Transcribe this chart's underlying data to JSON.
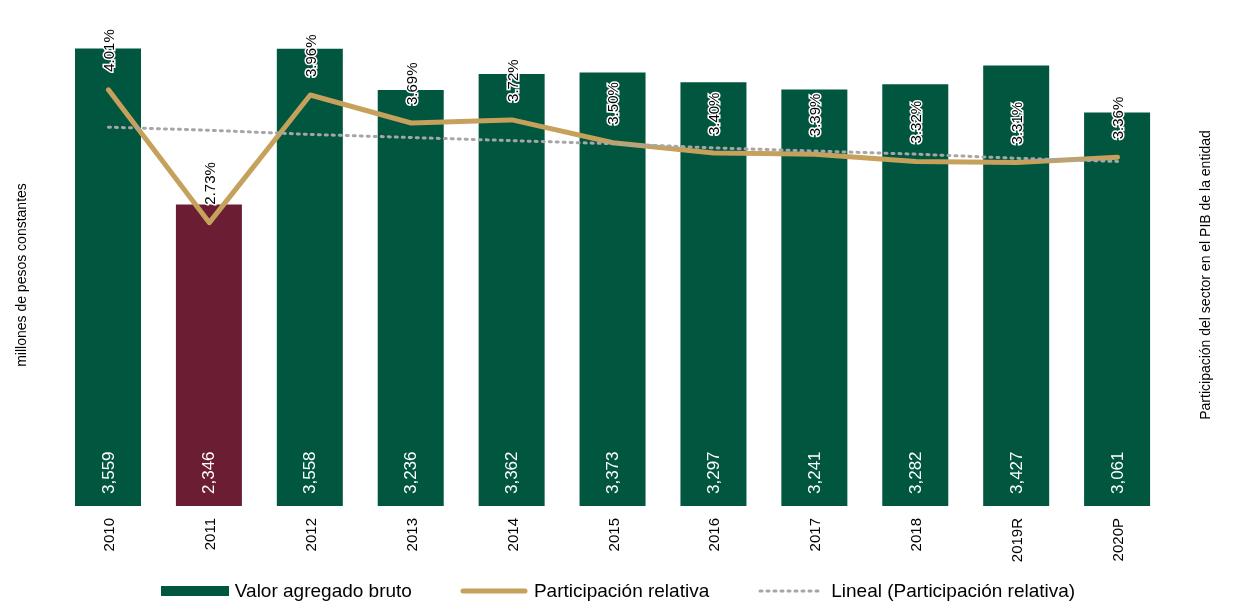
{
  "chart_data": {
    "type": "bar",
    "ylabel": "millones de pesos constantes",
    "y2label": "Participación del sector  en el PIB de la entidad",
    "categories": [
      "2010",
      "2011",
      "2012",
      "2013",
      "2014",
      "2015",
      "2016",
      "2017",
      "2018",
      "2019R",
      "2020P"
    ],
    "legend": "bottom",
    "series": [
      {
        "name": "Valor agregado bruto",
        "color": "#00563f",
        "colors": [
          "#00563f",
          "#6b1d33",
          "#00563f",
          "#00563f",
          "#00563f",
          "#00563f",
          "#00563f",
          "#00563f",
          "#00563f",
          "#00563f",
          "#00563f"
        ],
        "values": [
          3559,
          2346,
          3558,
          3236,
          3362,
          3373,
          3297,
          3241,
          3282,
          3427,
          3061
        ],
        "value_labels": [
          "3,559",
          "2,346",
          "3,558",
          "3,236",
          "3,362",
          "3,373",
          "3,297",
          "3,241",
          "3,282",
          "3,427",
          "3,061"
        ]
      },
      {
        "name": "Participación relativa",
        "type": "line",
        "axis": "y2",
        "color": "#c6a15b",
        "values": [
          4.01,
          2.73,
          3.96,
          3.69,
          3.72,
          3.5,
          3.4,
          3.39,
          3.32,
          3.31,
          3.36
        ],
        "value_labels": [
          "4.01%",
          "2.73%",
          "3.96%",
          "3.69%",
          "3.72%",
          "3.50%",
          "3.40%",
          "3.39%",
          "3.32%",
          "3.31%",
          "3.36%"
        ]
      },
      {
        "name": "Lineal (Participación relativa)",
        "type": "line",
        "axis": "y2",
        "color": "#a6a6a6",
        "line_style": "dotted",
        "values": [
          3.65,
          3.62,
          3.58,
          3.55,
          3.52,
          3.49,
          3.45,
          3.42,
          3.39,
          3.35,
          3.32
        ]
      }
    ]
  }
}
